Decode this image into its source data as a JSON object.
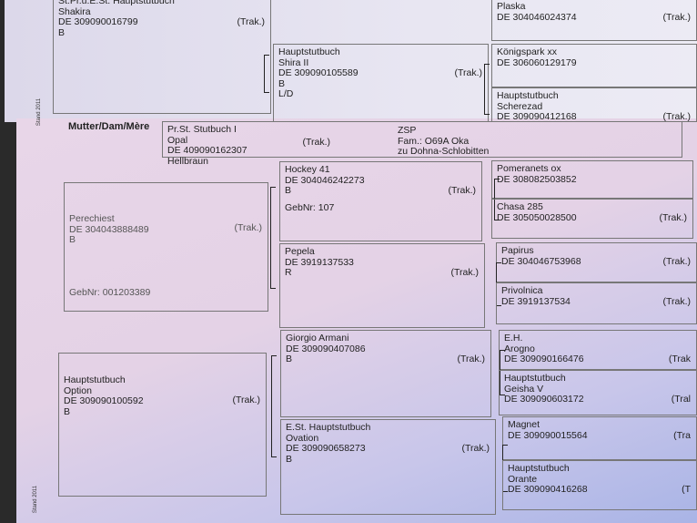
{
  "top_page": {
    "shakira": {
      "lines": [
        "St.Pr.u.E.St.  Hauptstutbuch",
        "Shakira",
        "DE 309090016799",
        "B"
      ],
      "trak": "(Trak.)"
    },
    "shira": {
      "lines": [
        "Hauptstutbuch",
        "Shira II",
        "DE 309090105589",
        "B",
        "L/D"
      ],
      "trak": "(Trak.)"
    },
    "plaska": {
      "lines": [
        "Plaska",
        "DE 304046024374"
      ],
      "trak": "(Trak.)"
    },
    "koenigspark": {
      "lines": [
        "Königspark  xx",
        "DE 306060129179"
      ]
    },
    "scherezad": {
      "lines": [
        "Hauptstutbuch",
        "Scherezad",
        "DE 309090412168"
      ],
      "trak": "(Trak.)"
    },
    "edge_text": "Stand 2011"
  },
  "bottom_page": {
    "header": "Mutter/Dam/Mère",
    "dam": {
      "lines": [
        "Pr.St.  Stutbuch I",
        "Opal",
        "DE 409090162307",
        "Hellbraun"
      ],
      "trak": "(Trak.)",
      "right": [
        "ZSP",
        "Fam.:  O69A Oka",
        "zu Dohna-Schlobitten"
      ]
    },
    "perechiest": {
      "lines": [
        "Perechiest",
        "DE 304043888489",
        "B"
      ],
      "trak": "(Trak.)",
      "geb": "GebNr:  001203389"
    },
    "hockey": {
      "lines": [
        "Hockey 41",
        "DE 304046242273",
        "B"
      ],
      "trak": "(Trak.)",
      "geb": "GebNr:  107"
    },
    "pepela": {
      "lines": [
        "Pepela",
        "DE 3919137533",
        "R"
      ],
      "trak": "(Trak.)"
    },
    "pomeranets": {
      "lines": [
        "Pomeranets  ox",
        "DE 308082503852"
      ]
    },
    "chasa": {
      "lines": [
        "Chasa 285",
        "DE 305050028500"
      ],
      "trak": "(Trak.)"
    },
    "papirus": {
      "lines": [
        "Papirus",
        "DE 304046753968"
      ],
      "trak": "(Trak.)"
    },
    "privolnica": {
      "lines": [
        "Privolnica",
        "DE 3919137534"
      ],
      "trak": "(Trak.)"
    },
    "option": {
      "lines": [
        "Hauptstutbuch",
        "Option",
        "DE 309090100592",
        "B"
      ],
      "trak": "(Trak.)"
    },
    "giorgio": {
      "lines": [
        "Giorgio Armani",
        "DE 309090407086",
        "B"
      ],
      "trak": "(Trak.)"
    },
    "ovation": {
      "lines": [
        "E.St.  Hauptstutbuch",
        "Ovation",
        "DE 309090658273",
        "B"
      ],
      "trak": "(Trak.)"
    },
    "arogno": {
      "lines": [
        "E.H.",
        "Arogno",
        "DE 309090166476"
      ],
      "trak": "(Trak"
    },
    "geisha": {
      "lines": [
        "Hauptstutbuch",
        "Geisha V",
        "DE 309090603172"
      ],
      "trak": "(Tral"
    },
    "magnet": {
      "lines": [
        "Magnet",
        "DE 309090015564"
      ],
      "trak": "(Tra"
    },
    "orante": {
      "lines": [
        "Hauptstutbuch",
        "Orante",
        "DE 309090416268"
      ],
      "trak": "(T"
    },
    "edge_text": "Stand 2011"
  }
}
